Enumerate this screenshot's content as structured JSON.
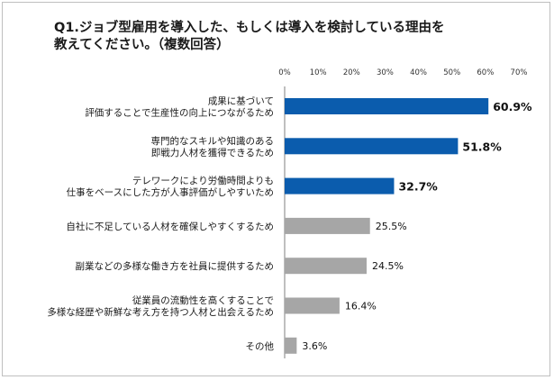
{
  "chart_data": {
    "type": "bar",
    "orientation": "horizontal",
    "title": "Q1.ジョブ型雇用を導入した、もしくは導入を検討している理由を教えてください。（複数回答）",
    "title_lines": [
      "Q1.ジョブ型雇用を導入した、もしくは導入を検討している理由を",
      "教えてください。（複数回答）"
    ],
    "categories": [
      [
        "成果に基づいて",
        "評価することで生産性の向上につながるため"
      ],
      [
        "専門的なスキルや知識のある",
        "即戦力人材を獲得できるため"
      ],
      [
        "テレワークにより労働時間よりも",
        "仕事をベースにした方が人事評価がしやすいため"
      ],
      [
        "自社に不足している人材を確保しやすくするため"
      ],
      [
        "副業などの多様な働き方を社員に提供するため"
      ],
      [
        "従業員の流動性を高くすることで",
        "多様な経歴や新鮮な考え方を持つ人材と出会えるため"
      ],
      [
        "その他"
      ]
    ],
    "values": [
      60.9,
      51.8,
      32.7,
      25.5,
      24.5,
      16.4,
      3.6
    ],
    "value_labels": [
      "60.9%",
      "51.8%",
      "32.7%",
      "25.5%",
      "24.5%",
      "16.4%",
      "3.6%"
    ],
    "ticks": [
      0,
      10,
      20,
      30,
      40,
      50,
      60,
      70
    ],
    "tick_labels": [
      "0%",
      "10%",
      "20%",
      "30%",
      "40%",
      "50%",
      "60%",
      "70%"
    ],
    "xlim": [
      0,
      70
    ],
    "highlight_count": 3,
    "colors": {
      "highlight": "#0b5cad",
      "default": "#a6a6a6"
    },
    "grid": false,
    "legend": "none"
  }
}
